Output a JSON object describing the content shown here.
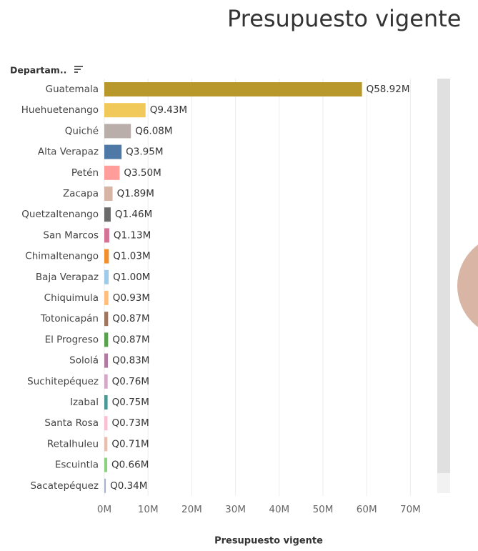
{
  "chart_data": {
    "type": "bar",
    "orientation": "horizontal",
    "title": "Presupuesto vigente",
    "y_label": "Departam..",
    "x_label": "Presupuesto vigente",
    "categories": [
      "Guatemala",
      "Huehuetenango",
      "Quiché",
      "Alta Verapaz",
      "Petén",
      "Zacapa",
      "Quetzaltenango",
      "San Marcos",
      "Chimaltenango",
      "Baja Verapaz",
      "Chiquimula",
      "Totonicapán",
      "El Progreso",
      "Sololá",
      "Suchitepéquez",
      "Izabal",
      "Santa Rosa",
      "Retalhuleu",
      "Escuintla",
      "Sacatepéquez"
    ],
    "values": [
      58.92,
      9.43,
      6.08,
      3.95,
      3.5,
      1.89,
      1.46,
      1.13,
      1.03,
      1.0,
      0.93,
      0.87,
      0.87,
      0.83,
      0.76,
      0.75,
      0.73,
      0.71,
      0.66,
      0.34
    ],
    "value_labels": [
      "Q58.92M",
      "Q9.43M",
      "Q6.08M",
      "Q3.95M",
      "Q3.50M",
      "Q1.89M",
      "Q1.46M",
      "Q1.13M",
      "Q1.03M",
      "Q1.00M",
      "Q0.93M",
      "Q0.87M",
      "Q0.87M",
      "Q0.83M",
      "Q0.76M",
      "Q0.75M",
      "Q0.73M",
      "Q0.71M",
      "Q0.66M",
      "Q0.34M"
    ],
    "colors": [
      "#b8972b",
      "#f1c85a",
      "#b9aeaa",
      "#4e79a7",
      "#ff9d9a",
      "#d7b5a6",
      "#6b6b6b",
      "#d37295",
      "#f28e2b",
      "#a0cbe8",
      "#ffbe7d",
      "#9d7660",
      "#59a14f",
      "#b07aa1",
      "#d4a6c8",
      "#499894",
      "#fabfd2",
      "#e8c0b0",
      "#8cd17d",
      "#a8b4cc"
    ],
    "xlim": [
      0,
      75
    ],
    "xticks": [
      {
        "value": 0,
        "label": "0M"
      },
      {
        "value": 10,
        "label": "10M"
      },
      {
        "value": 20,
        "label": "20M"
      },
      {
        "value": 30,
        "label": "30M"
      },
      {
        "value": 40,
        "label": "40M"
      },
      {
        "value": 50,
        "label": "50M"
      },
      {
        "value": 60,
        "label": "60M"
      },
      {
        "value": 70,
        "label": "70M"
      }
    ],
    "grid": true
  }
}
